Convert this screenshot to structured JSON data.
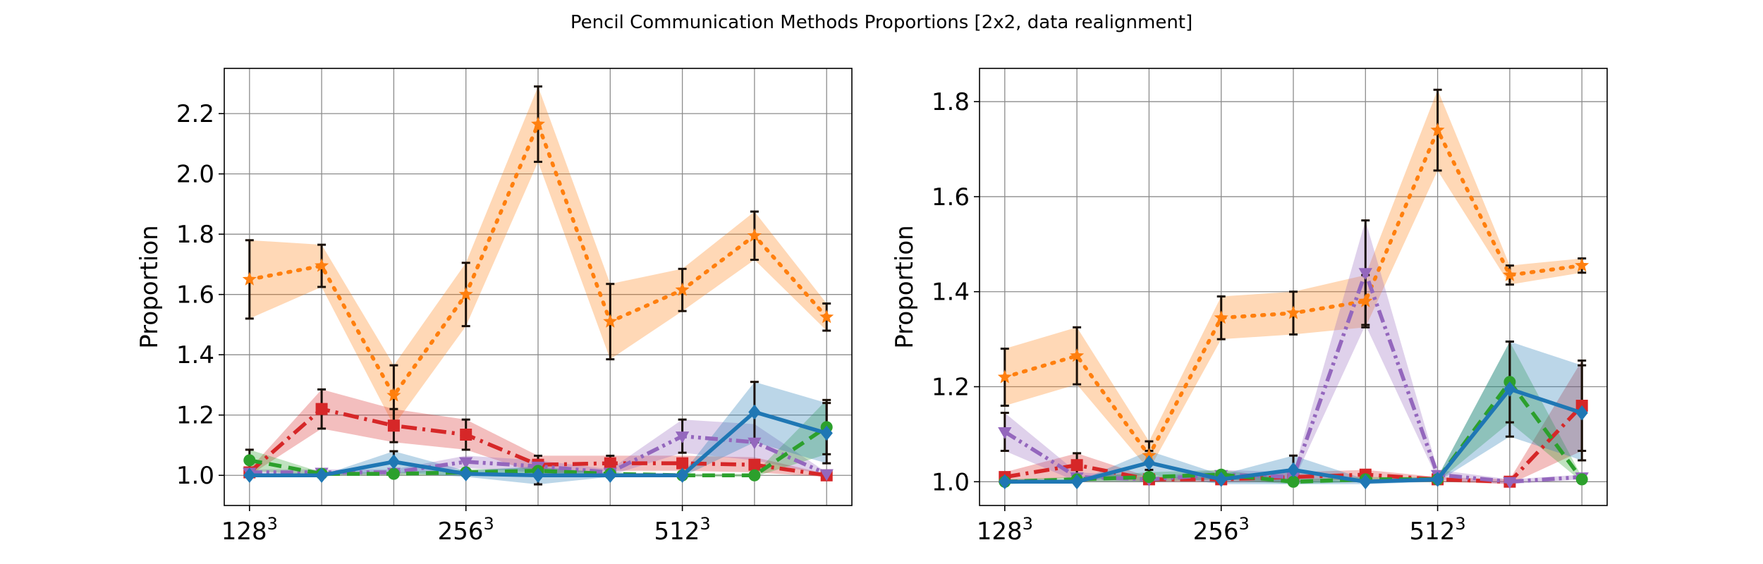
{
  "figure": {
    "title": "Pencil Communication Methods Proportions [2x2, data realignment]"
  },
  "series_styles": [
    {
      "key": "s_orange",
      "color": "#ff7f0e",
      "dash": "3 11",
      "marker": "star"
    },
    {
      "key": "s_red",
      "color": "#d62728",
      "dash": "22 8 4 8",
      "marker": "square"
    },
    {
      "key": "s_purple",
      "color": "#9467bd",
      "dash": "18 6 4 6 4 6",
      "marker": "triangle-down"
    },
    {
      "key": "s_green",
      "color": "#2ca02c",
      "dash": "18 10",
      "marker": "circle"
    },
    {
      "key": "s_blue",
      "color": "#1f77b4",
      "dash": "",
      "marker": "diamond"
    }
  ],
  "chart_data": [
    {
      "type": "line",
      "title": "",
      "xlabel": "",
      "ylabel": "Proportion",
      "x": [
        0,
        1,
        2,
        3,
        4,
        5,
        6,
        7,
        8
      ],
      "xticks": [
        {
          "x": 0,
          "base": "128",
          "exp": "3"
        },
        {
          "x": 3,
          "base": "256",
          "exp": "3"
        },
        {
          "x": 6,
          "base": "512",
          "exp": "3"
        }
      ],
      "ylim": [
        0.9,
        2.35
      ],
      "yticks": [
        "1.0",
        "1.2",
        "1.4",
        "1.6",
        "1.8",
        "2.0",
        "2.2"
      ],
      "grid": true,
      "series": [
        {
          "style": "s_orange",
          "values": [
            1.65,
            1.695,
            1.265,
            1.6,
            2.165,
            1.51,
            1.615,
            1.795,
            1.525
          ],
          "err": [
            0.13,
            0.07,
            0.1,
            0.105,
            0.125,
            0.125,
            0.07,
            0.08,
            0.045
          ],
          "band": [
            0.13,
            0.07,
            0.1,
            0.105,
            0.125,
            0.125,
            0.07,
            0.08,
            0.045
          ]
        },
        {
          "style": "s_red",
          "values": [
            1.01,
            1.22,
            1.165,
            1.135,
            1.035,
            1.04,
            1.04,
            1.035,
            1.0
          ],
          "err": [
            0.0,
            0.065,
            0.055,
            0.05,
            0.03,
            0.025,
            0.0,
            0.0,
            0.0
          ],
          "band": [
            0.01,
            0.065,
            0.055,
            0.05,
            0.03,
            0.025,
            0.025,
            0.025,
            0.005
          ]
        },
        {
          "style": "s_purple",
          "values": [
            1.01,
            1.01,
            1.01,
            1.045,
            1.03,
            1.01,
            1.13,
            1.11,
            1.005
          ],
          "err": [
            0.0,
            0.0,
            0.0,
            0.0,
            0.0,
            0.0,
            0.055,
            0.0,
            0.0
          ],
          "band": [
            0.01,
            0.01,
            0.01,
            0.02,
            0.02,
            0.01,
            0.055,
            0.06,
            0.005
          ]
        },
        {
          "style": "s_green",
          "values": [
            1.05,
            1.005,
            1.005,
            1.01,
            1.015,
            1.005,
            1.0,
            1.0,
            1.16
          ],
          "err": [
            0.035,
            0.0,
            0.0,
            0.0,
            0.0,
            0.0,
            0.0,
            0.0,
            0.09
          ],
          "band": [
            0.035,
            0.005,
            0.005,
            0.01,
            0.01,
            0.005,
            0.005,
            0.005,
            0.09
          ]
        },
        {
          "style": "s_blue",
          "values": [
            1.0,
            1.0,
            1.045,
            1.005,
            1.0,
            1.0,
            1.0,
            1.21,
            1.14
          ],
          "err": [
            0.0,
            0.0,
            0.035,
            0.0,
            0.03,
            0.0,
            0.0,
            0.1,
            0.1
          ],
          "band": [
            0.0,
            0.0,
            0.035,
            0.01,
            0.03,
            0.005,
            0.005,
            0.1,
            0.1
          ]
        }
      ]
    },
    {
      "type": "line",
      "title": "",
      "xlabel": "",
      "ylabel": "Proportion",
      "x": [
        0,
        1,
        2,
        3,
        4,
        5,
        6,
        7,
        8
      ],
      "xticks": [
        {
          "x": 0,
          "base": "128",
          "exp": "3"
        },
        {
          "x": 3,
          "base": "256",
          "exp": "3"
        },
        {
          "x": 6,
          "base": "512",
          "exp": "3"
        }
      ],
      "ylim": [
        0.95,
        1.87
      ],
      "yticks": [
        "1.0",
        "1.2",
        "1.4",
        "1.6",
        "1.8"
      ],
      "grid": true,
      "series": [
        {
          "style": "s_orange",
          "values": [
            1.22,
            1.265,
            1.055,
            1.345,
            1.355,
            1.38,
            1.74,
            1.435,
            1.455
          ],
          "err": [
            0.06,
            0.06,
            0.03,
            0.045,
            0.045,
            0.055,
            0.085,
            0.02,
            0.015
          ],
          "band": [
            0.06,
            0.06,
            0.03,
            0.045,
            0.045,
            0.055,
            0.085,
            0.02,
            0.015
          ]
        },
        {
          "style": "s_red",
          "values": [
            1.01,
            1.035,
            1.005,
            1.005,
            1.01,
            1.015,
            1.005,
            1.0,
            1.16
          ],
          "err": [
            0.0,
            0.025,
            0.0,
            0.0,
            0.0,
            0.0,
            0.0,
            0.0,
            0.095
          ],
          "band": [
            0.01,
            0.025,
            0.005,
            0.005,
            0.01,
            0.01,
            0.005,
            0.005,
            0.095
          ]
        },
        {
          "style": "s_purple",
          "values": [
            1.105,
            1.01,
            1.005,
            1.015,
            1.01,
            1.44,
            1.015,
            1.0,
            1.01
          ],
          "err": [
            0.04,
            0.0,
            0.0,
            0.0,
            0.0,
            0.11,
            0.0,
            0.0,
            0.0
          ],
          "band": [
            0.04,
            0.01,
            0.005,
            0.01,
            0.01,
            0.11,
            0.01,
            0.005,
            0.005
          ]
        },
        {
          "style": "s_green",
          "values": [
            1.0,
            1.005,
            1.01,
            1.015,
            1.0,
            1.005,
            1.005,
            1.21,
            1.005
          ],
          "err": [
            0.0,
            0.0,
            0.0,
            0.0,
            0.0,
            0.0,
            0.0,
            0.085,
            0.0
          ],
          "band": [
            0.005,
            0.005,
            0.01,
            0.01,
            0.005,
            0.005,
            0.005,
            0.085,
            0.005
          ]
        },
        {
          "style": "s_blue",
          "values": [
            1.0,
            1.0,
            1.04,
            1.005,
            1.025,
            1.0,
            1.005,
            1.195,
            1.145
          ],
          "err": [
            0.0,
            0.0,
            0.025,
            0.0,
            0.03,
            0.0,
            0.0,
            0.1,
            0.1
          ],
          "band": [
            0.0,
            0.0,
            0.025,
            0.01,
            0.03,
            0.005,
            0.005,
            0.1,
            0.1
          ]
        }
      ]
    }
  ]
}
